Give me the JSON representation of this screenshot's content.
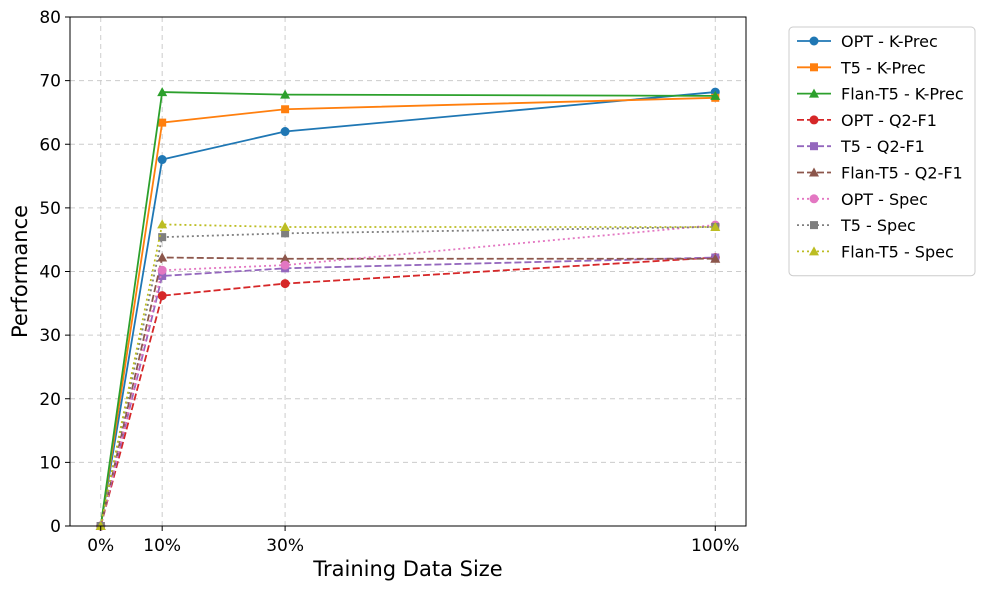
{
  "chart_data": {
    "type": "line",
    "title": "",
    "xlabel": "Training Data Size",
    "ylabel": "Performance",
    "x": [
      0,
      10,
      30,
      100
    ],
    "xtick_labels": [
      "0%",
      "10%",
      "30%",
      "100%"
    ],
    "ylim": [
      0,
      80
    ],
    "yticks": [
      0,
      10,
      20,
      30,
      40,
      50,
      60,
      70,
      80
    ],
    "grid": true,
    "legend_position": "outside-top-right",
    "series": [
      {
        "name": "OPT - K-Prec",
        "color": "#1f77b4",
        "linestyle": "solid",
        "marker": "circle",
        "values": [
          0,
          57.6,
          62.0,
          68.2
        ]
      },
      {
        "name": "T5 - K-Prec",
        "color": "#ff7f0e",
        "linestyle": "solid",
        "marker": "square",
        "values": [
          0,
          63.4,
          65.5,
          67.3
        ]
      },
      {
        "name": "Flan-T5 - K-Prec",
        "color": "#2ca02c",
        "linestyle": "solid",
        "marker": "triangle",
        "values": [
          0,
          68.2,
          67.8,
          67.6
        ]
      },
      {
        "name": "OPT - Q2-F1",
        "color": "#d62728",
        "linestyle": "dashed",
        "marker": "circle",
        "values": [
          0,
          36.2,
          38.1,
          42.2
        ]
      },
      {
        "name": "T5 - Q2-F1",
        "color": "#9467bd",
        "linestyle": "dashed",
        "marker": "square",
        "values": [
          0,
          39.3,
          40.5,
          42.2
        ]
      },
      {
        "name": "Flan-T5 - Q2-F1",
        "color": "#8c564b",
        "linestyle": "dashed",
        "marker": "triangle",
        "values": [
          0,
          42.2,
          42.0,
          42.0
        ]
      },
      {
        "name": "OPT - Spec",
        "color": "#e377c2",
        "linestyle": "dotted",
        "marker": "circle",
        "values": [
          0,
          40.2,
          41.0,
          47.3
        ]
      },
      {
        "name": "T5 - Spec",
        "color": "#7f7f7f",
        "linestyle": "dotted",
        "marker": "square",
        "values": [
          0,
          45.4,
          46.0,
          47.0
        ]
      },
      {
        "name": "Flan-T5 - Spec",
        "color": "#bcbd22",
        "linestyle": "dotted",
        "marker": "triangle",
        "values": [
          0,
          47.4,
          47.0,
          47.0
        ]
      }
    ]
  }
}
